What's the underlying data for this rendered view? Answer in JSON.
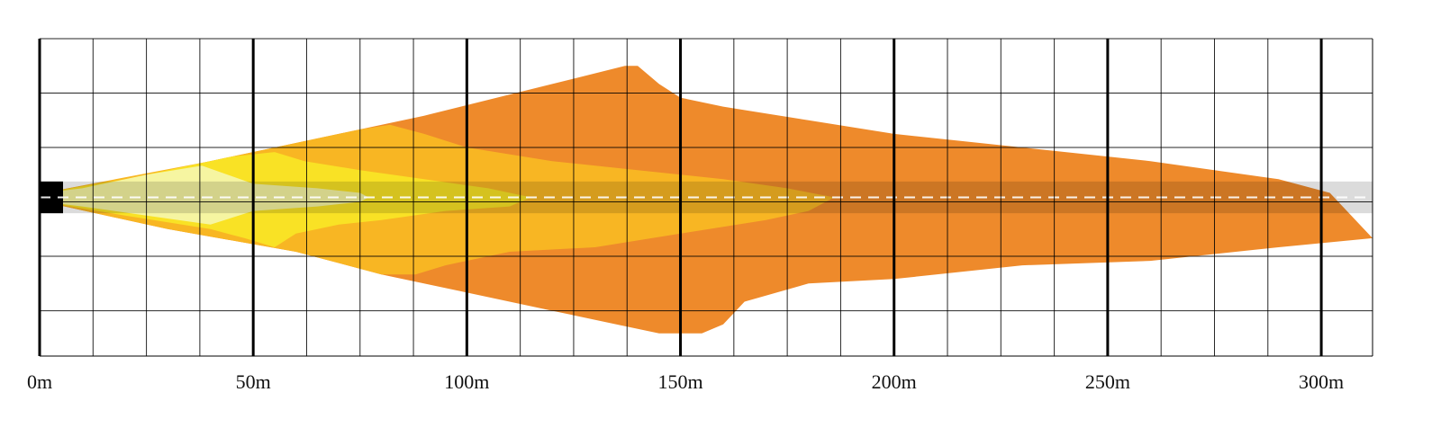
{
  "chart_data": {
    "type": "area",
    "title": "",
    "xlabel": "",
    "ylabel": "",
    "x_unit": "m",
    "xlim": [
      0,
      312
    ],
    "ylim": [
      -35,
      35
    ],
    "grid": true,
    "x_ticks": [
      {
        "value": 0,
        "label": "0m"
      },
      {
        "value": 50,
        "label": "50m"
      },
      {
        "value": 100,
        "label": "100m"
      },
      {
        "value": 150,
        "label": "150m"
      },
      {
        "value": 200,
        "label": "200m"
      },
      {
        "value": 250,
        "label": "250m"
      },
      {
        "value": 300,
        "label": "300m"
      }
    ],
    "road": {
      "width": 7,
      "color": "#000000",
      "centerline_color": "#ffffff"
    },
    "series": [
      {
        "color": "#ee8a2b",
        "points": [
          [
            1,
            1
          ],
          [
            30,
            6
          ],
          [
            60,
            12
          ],
          [
            90,
            18
          ],
          [
            120,
            25
          ],
          [
            137,
            29
          ],
          [
            140,
            29
          ],
          [
            145,
            25
          ],
          [
            150,
            22
          ],
          [
            160,
            20
          ],
          [
            180,
            17
          ],
          [
            200,
            14
          ],
          [
            230,
            11
          ],
          [
            260,
            8
          ],
          [
            290,
            4
          ],
          [
            302,
            1
          ],
          [
            312,
            -9
          ],
          [
            290,
            -11
          ],
          [
            260,
            -14
          ],
          [
            230,
            -15
          ],
          [
            200,
            -18
          ],
          [
            180,
            -19
          ],
          [
            165,
            -23
          ],
          [
            160,
            -28
          ],
          [
            155,
            -30
          ],
          [
            145,
            -30
          ],
          [
            135,
            -28
          ],
          [
            120,
            -25
          ],
          [
            100,
            -21
          ],
          [
            80,
            -17
          ],
          [
            60,
            -12
          ],
          [
            30,
            -7
          ],
          [
            1,
            -1
          ]
        ]
      },
      {
        "color": "#f8b623",
        "points": [
          [
            1,
            1
          ],
          [
            40,
            8
          ],
          [
            60,
            12
          ],
          [
            75,
            15
          ],
          [
            82,
            16
          ],
          [
            90,
            14
          ],
          [
            100,
            11
          ],
          [
            120,
            8
          ],
          [
            140,
            6
          ],
          [
            160,
            4
          ],
          [
            175,
            2
          ],
          [
            186,
            0
          ],
          [
            180,
            -3
          ],
          [
            170,
            -5
          ],
          [
            150,
            -8
          ],
          [
            130,
            -11
          ],
          [
            110,
            -12
          ],
          [
            95,
            -15
          ],
          [
            88,
            -17
          ],
          [
            80,
            -17
          ],
          [
            60,
            -12
          ],
          [
            30,
            -7
          ],
          [
            1,
            -1
          ]
        ]
      },
      {
        "color": "#f9e225",
        "points": [
          [
            1,
            1
          ],
          [
            20,
            4
          ],
          [
            35,
            7
          ],
          [
            45,
            9
          ],
          [
            55,
            10
          ],
          [
            62,
            8
          ],
          [
            75,
            6
          ],
          [
            90,
            4
          ],
          [
            105,
            2
          ],
          [
            115,
            0
          ],
          [
            110,
            -2
          ],
          [
            95,
            -3
          ],
          [
            80,
            -5
          ],
          [
            70,
            -6
          ],
          [
            60,
            -8
          ],
          [
            55,
            -11
          ],
          [
            48,
            -9
          ],
          [
            40,
            -7
          ],
          [
            20,
            -4
          ],
          [
            1,
            -1
          ]
        ]
      },
      {
        "color": "#f6f5a1",
        "points": [
          [
            1,
            1
          ],
          [
            10,
            2
          ],
          [
            25,
            5
          ],
          [
            38,
            7
          ],
          [
            50,
            3
          ],
          [
            65,
            2
          ],
          [
            75,
            1
          ],
          [
            77,
            0
          ],
          [
            75,
            -1
          ],
          [
            65,
            -2
          ],
          [
            50,
            -3
          ],
          [
            40,
            -6
          ],
          [
            25,
            -4
          ],
          [
            10,
            -2
          ],
          [
            1,
            -1
          ]
        ]
      }
    ]
  }
}
